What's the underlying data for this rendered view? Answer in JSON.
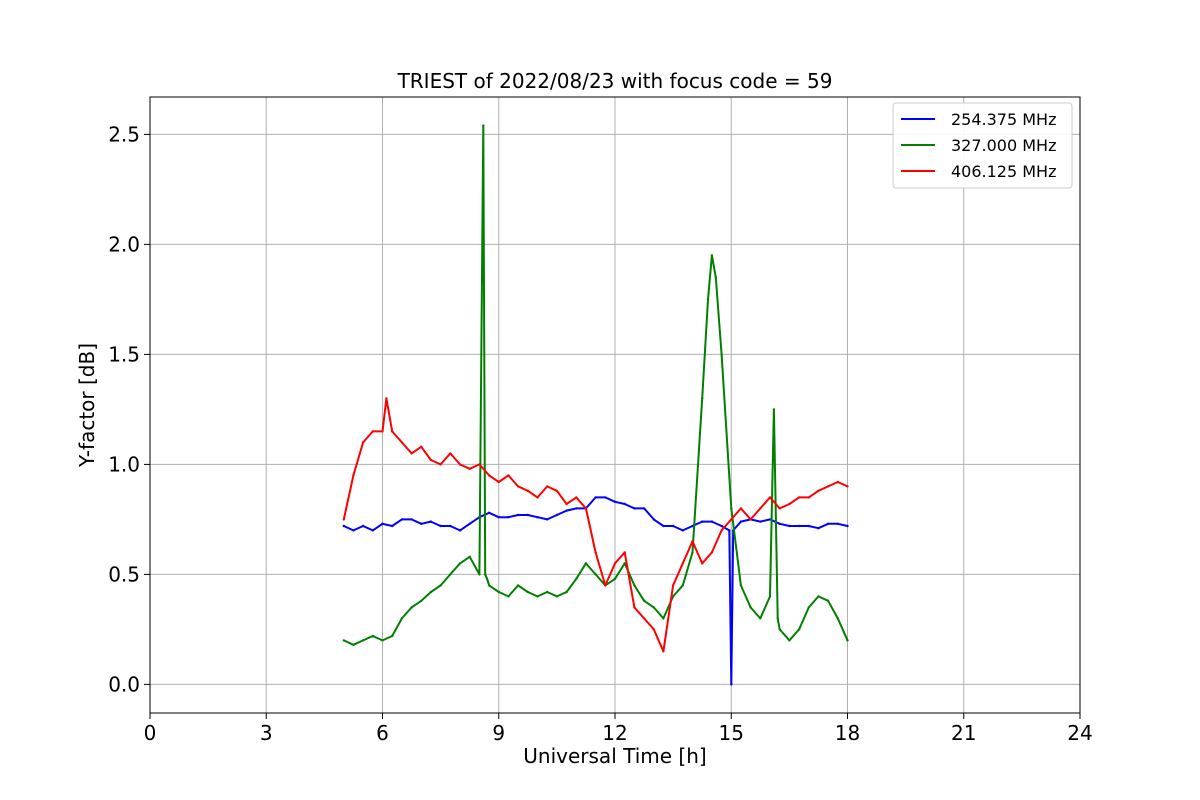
{
  "chart_data": {
    "type": "line",
    "title": "TRIEST of 2022/08/23 with focus code = 59",
    "xlabel": "Universal Time [h]",
    "ylabel": "Y-factor [dB]",
    "xlim": [
      0,
      24
    ],
    "ylim": [
      -0.13,
      2.67
    ],
    "xticks": [
      0,
      3,
      6,
      9,
      12,
      15,
      18,
      21,
      24
    ],
    "xtick_labels": [
      "0",
      "3",
      "6",
      "9",
      "12",
      "15",
      "18",
      "21",
      "24"
    ],
    "yticks": [
      0.0,
      0.5,
      1.0,
      1.5,
      2.0,
      2.5
    ],
    "ytick_labels": [
      "0.0",
      "0.5",
      "1.0",
      "1.5",
      "2.0",
      "2.5"
    ],
    "grid": true,
    "legend_position": "top-right",
    "series": [
      {
        "name": "254.375 MHz",
        "color": "#0000ff",
        "x": [
          5.0,
          5.25,
          5.5,
          5.75,
          6.0,
          6.25,
          6.5,
          6.75,
          7.0,
          7.25,
          7.5,
          7.75,
          8.0,
          8.25,
          8.5,
          8.75,
          9.0,
          9.25,
          9.5,
          9.75,
          10.0,
          10.25,
          10.5,
          10.75,
          11.0,
          11.25,
          11.5,
          11.75,
          12.0,
          12.25,
          12.5,
          12.75,
          13.0,
          13.25,
          13.5,
          13.75,
          14.0,
          14.25,
          14.5,
          14.75,
          14.95,
          15.0,
          15.05,
          15.25,
          15.5,
          15.75,
          16.0,
          16.25,
          16.5,
          16.75,
          17.0,
          17.25,
          17.5,
          17.75,
          18.0
        ],
        "y": [
          0.72,
          0.7,
          0.72,
          0.7,
          0.73,
          0.72,
          0.75,
          0.75,
          0.73,
          0.74,
          0.72,
          0.72,
          0.7,
          0.73,
          0.76,
          0.78,
          0.76,
          0.76,
          0.77,
          0.77,
          0.76,
          0.75,
          0.77,
          0.79,
          0.8,
          0.8,
          0.85,
          0.85,
          0.83,
          0.82,
          0.8,
          0.8,
          0.75,
          0.72,
          0.72,
          0.7,
          0.72,
          0.74,
          0.74,
          0.72,
          0.7,
          0.0,
          0.7,
          0.74,
          0.75,
          0.74,
          0.75,
          0.73,
          0.72,
          0.72,
          0.72,
          0.71,
          0.73,
          0.73,
          0.72
        ]
      },
      {
        "name": "327.000 MHz",
        "color": "#008000",
        "x": [
          5.0,
          5.25,
          5.5,
          5.75,
          6.0,
          6.25,
          6.5,
          6.75,
          7.0,
          7.25,
          7.5,
          7.75,
          8.0,
          8.25,
          8.5,
          8.6,
          8.65,
          8.7,
          8.75,
          9.0,
          9.25,
          9.5,
          9.75,
          10.0,
          10.25,
          10.5,
          10.75,
          11.0,
          11.25,
          11.5,
          11.75,
          12.0,
          12.25,
          12.5,
          12.75,
          13.0,
          13.25,
          13.5,
          13.75,
          14.0,
          14.25,
          14.4,
          14.5,
          14.6,
          14.75,
          15.0,
          15.25,
          15.5,
          15.75,
          16.0,
          16.1,
          16.2,
          16.25,
          16.5,
          16.75,
          17.0,
          17.25,
          17.5,
          17.75,
          18.0
        ],
        "y": [
          0.2,
          0.18,
          0.2,
          0.22,
          0.2,
          0.22,
          0.3,
          0.35,
          0.38,
          0.42,
          0.45,
          0.5,
          0.55,
          0.58,
          0.5,
          2.54,
          0.5,
          0.48,
          0.45,
          0.42,
          0.4,
          0.45,
          0.42,
          0.4,
          0.42,
          0.4,
          0.42,
          0.48,
          0.55,
          0.5,
          0.45,
          0.48,
          0.55,
          0.45,
          0.38,
          0.35,
          0.3,
          0.4,
          0.45,
          0.6,
          1.3,
          1.75,
          1.95,
          1.85,
          1.5,
          0.8,
          0.45,
          0.35,
          0.3,
          0.4,
          1.25,
          0.3,
          0.25,
          0.2,
          0.25,
          0.35,
          0.4,
          0.38,
          0.3,
          0.2
        ]
      },
      {
        "name": "406.125 MHz",
        "color": "#ff0000",
        "x": [
          5.0,
          5.25,
          5.5,
          5.75,
          6.0,
          6.1,
          6.25,
          6.5,
          6.75,
          7.0,
          7.25,
          7.5,
          7.75,
          8.0,
          8.25,
          8.5,
          8.75,
          9.0,
          9.25,
          9.5,
          9.75,
          10.0,
          10.25,
          10.5,
          10.75,
          11.0,
          11.25,
          11.5,
          11.75,
          12.0,
          12.25,
          12.5,
          12.75,
          13.0,
          13.25,
          13.5,
          13.75,
          14.0,
          14.25,
          14.5,
          14.75,
          15.0,
          15.25,
          15.5,
          15.75,
          16.0,
          16.25,
          16.5,
          16.75,
          17.0,
          17.25,
          17.5,
          17.75,
          18.0
        ],
        "y": [
          0.75,
          0.95,
          1.1,
          1.15,
          1.15,
          1.3,
          1.15,
          1.1,
          1.05,
          1.08,
          1.02,
          1.0,
          1.05,
          1.0,
          0.98,
          1.0,
          0.95,
          0.92,
          0.95,
          0.9,
          0.88,
          0.85,
          0.9,
          0.88,
          0.82,
          0.85,
          0.8,
          0.6,
          0.45,
          0.55,
          0.6,
          0.35,
          0.3,
          0.25,
          0.15,
          0.45,
          0.55,
          0.65,
          0.55,
          0.6,
          0.7,
          0.75,
          0.8,
          0.75,
          0.8,
          0.85,
          0.8,
          0.82,
          0.85,
          0.85,
          0.88,
          0.9,
          0.92,
          0.9
        ]
      }
    ]
  }
}
